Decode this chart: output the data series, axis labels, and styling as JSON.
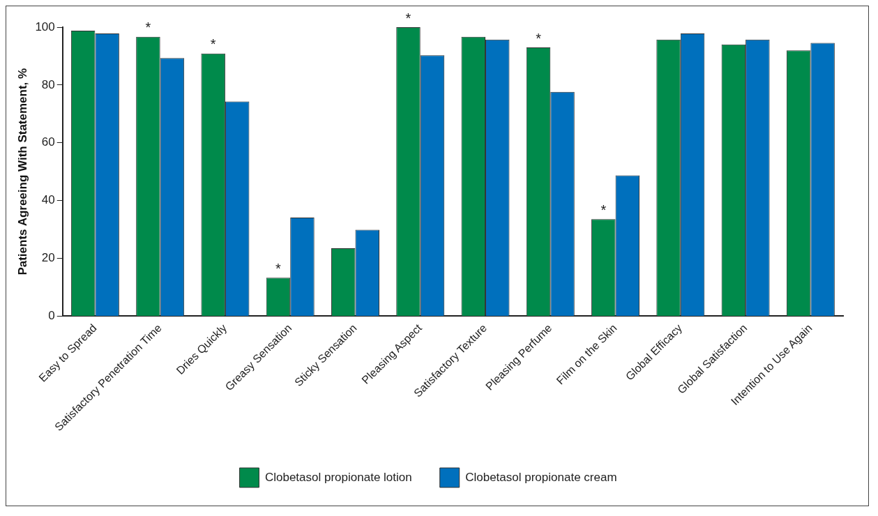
{
  "chart_data": {
    "type": "bar",
    "ylabel": "Patients Agreeing With Statement, %",
    "categories": [
      "Easy to Spread",
      "Satisfactory Penetration Time",
      "Dries Quickly",
      "Greasy Sensation",
      "Sticky Sensation",
      "Pleasing Aspect",
      "Satisfactory Texture",
      "Pleasing Perfume",
      "Film on the Skin",
      "Global Efficacy",
      "Global Satisfaction",
      "Intention to Use Again"
    ],
    "series": [
      {
        "name": "Clobetasol propionate lotion",
        "color": "#008a4b",
        "values": [
          98.8,
          96.7,
          90.9,
          13.3,
          23.5,
          100,
          96.7,
          93,
          33.6,
          95.7,
          94,
          92
        ]
      },
      {
        "name": "Clobetasol propionate cream",
        "color": "#0070bd",
        "values": [
          97.8,
          89.3,
          74.3,
          34.1,
          29.9,
          90.3,
          95.7,
          77.6,
          48.7,
          97.8,
          95.7,
          94.6
        ]
      }
    ],
    "ylim": [
      0,
      100
    ],
    "yticks": [
      0,
      20,
      40,
      60,
      80,
      100
    ],
    "grid": false,
    "legend": "bottom",
    "annotations": [
      {
        "text": "*",
        "x": "Satisfactory Penetration Time",
        "y": 96.7
      },
      {
        "text": "*",
        "x": "Dries Quickly",
        "y": 90.9
      },
      {
        "text": "*",
        "x": "Greasy Sensation",
        "y": 13.3
      },
      {
        "text": "*",
        "x": "Pleasing Aspect",
        "y": 100
      },
      {
        "text": "*",
        "x": "Pleasing Perfume",
        "y": 93
      },
      {
        "text": "*",
        "x": "Film on the Skin",
        "y": 33.6
      }
    ]
  }
}
